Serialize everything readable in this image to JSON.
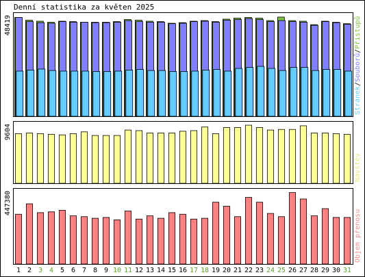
{
  "chart_data": {
    "type": "bar",
    "title": "Denní statistika za květen 2025",
    "categories": [
      "1",
      "2",
      "3",
      "4",
      "5",
      "6",
      "7",
      "8",
      "9",
      "10",
      "11",
      "12",
      "13",
      "14",
      "15",
      "16",
      "17",
      "18",
      "19",
      "20",
      "21",
      "22",
      "23",
      "24",
      "25",
      "26",
      "27",
      "28",
      "29",
      "30",
      "31"
    ],
    "weekend_days": [
      "3",
      "4",
      "10",
      "11",
      "17",
      "18",
      "24",
      "25",
      "31"
    ],
    "panels": [
      {
        "id": "hits",
        "ytick_label": "48419",
        "ymax": 48419,
        "legend": [
          {
            "text": "Stránek",
            "color": "#66ccff"
          },
          {
            "text": "/",
            "color": "#000000"
          },
          {
            "text": "Souborů",
            "color": "#8080ff"
          },
          {
            "text": "/",
            "color": "#000000"
          },
          {
            "text": "Přístupů",
            "color": "#80c040"
          }
        ],
        "series": [
          {
            "name": "Přístupů",
            "color": "#80c040",
            "values": [
              47900,
              46600,
              46100,
              45600,
              46100,
              45900,
              45600,
              45600,
              45600,
              45900,
              46900,
              46600,
              46100,
              45900,
              45100,
              45400,
              46100,
              46400,
              45900,
              47100,
              47600,
              47900,
              47600,
              46400,
              48100,
              46400,
              46100,
              44400,
              46100,
              45600,
              44900
            ]
          },
          {
            "name": "Souborů",
            "color": "#8080ff",
            "values": [
              47900,
              45900,
              45400,
              45100,
              45900,
              45600,
              45600,
              45400,
              45400,
              45600,
              46400,
              45900,
              45600,
              45600,
              44900,
              45100,
              45900,
              46100,
              45600,
              46600,
              46900,
              47400,
              46900,
              45900,
              46400,
              45900,
              45600,
              44100,
              45900,
              45400,
              44600
            ]
          },
          {
            "name": "Stránek",
            "color": "#66ccff",
            "values": [
              21900,
              22400,
              22900,
              22200,
              21900,
              21900,
              21900,
              21700,
              21700,
              21900,
              22400,
              22700,
              22200,
              22200,
              21700,
              21700,
              21900,
              22400,
              22700,
              21900,
              23200,
              23700,
              24200,
              23200,
              22200,
              23700,
              23700,
              22200,
              22700,
              22700,
              21900
            ]
          }
        ]
      },
      {
        "id": "visits",
        "ytick_label": "9604",
        "ymax": 9604,
        "legend": [
          {
            "text": "Návštěv",
            "color": "#e8e880"
          }
        ],
        "series": [
          {
            "name": "Návštěv",
            "color": "#ffff99",
            "values": [
              8200,
              8300,
              8200,
              8100,
              8000,
              8200,
              8500,
              7900,
              7900,
              7900,
              8800,
              8700,
              8300,
              8300,
              8300,
              8600,
              8700,
              9300,
              8200,
              9200,
              9200,
              9600,
              9200,
              8800,
              8900,
              8900,
              9500,
              8300,
              8300,
              8200,
              8100
            ]
          }
        ]
      },
      {
        "id": "volume",
        "ytick_label": "447380",
        "ymax": 447380,
        "legend": [
          {
            "text": "Objem přenosu",
            "color": "#f09090"
          }
        ],
        "series": [
          {
            "name": "Objem přenosu",
            "color": "#ff8080",
            "values": [
              310000,
              375000,
              320000,
              325000,
              335000,
              300000,
              295000,
              285000,
              290000,
              275000,
              330000,
              280000,
              300000,
              285000,
              320000,
              310000,
              280000,
              285000,
              385000,
              360000,
              295000,
              415000,
              385000,
              315000,
              295000,
              445000,
              405000,
              300000,
              345000,
              290000,
              290000
            ]
          }
        ]
      }
    ]
  }
}
